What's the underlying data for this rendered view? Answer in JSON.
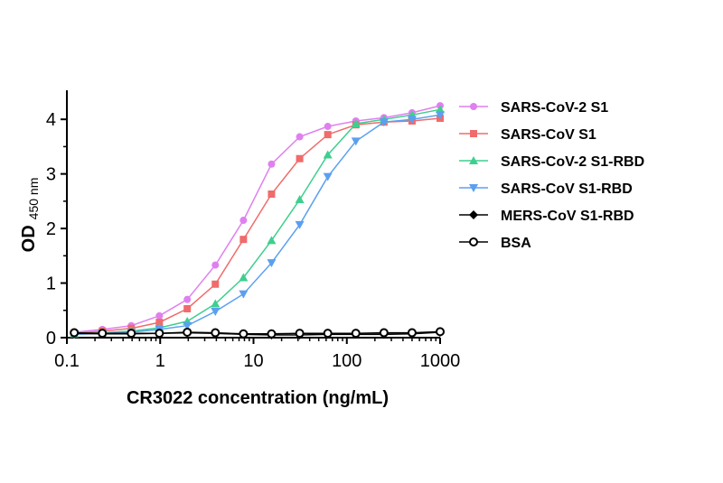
{
  "chart_data": {
    "type": "line",
    "title": "",
    "xlabel": "CR3022 concentration (ng/mL)",
    "ylabel_main": "OD",
    "ylabel_sub": "450 nm",
    "xscale": "log",
    "xlim": [
      0.1,
      1000
    ],
    "ylim": [
      0,
      4.4
    ],
    "xticks": [
      0.1,
      1,
      10,
      100,
      1000
    ],
    "xtick_labels": [
      "0.1",
      "1",
      "10",
      "100",
      "1000"
    ],
    "yticks": [
      0,
      1,
      2,
      3,
      4
    ],
    "ytick_labels": [
      "0",
      "1",
      "2",
      "3",
      "4"
    ],
    "grid": false,
    "legend_position": "right",
    "x": [
      0.12,
      0.24,
      0.49,
      0.98,
      1.95,
      3.9,
      7.8,
      15.6,
      31.25,
      62.5,
      125,
      250,
      500,
      1000
    ],
    "series": [
      {
        "name": "SARS-CoV-2 S1",
        "color": "#e07ff0",
        "marker": "circle",
        "values": [
          0.1,
          0.15,
          0.22,
          0.4,
          0.7,
          1.33,
          2.15,
          3.18,
          3.68,
          3.87,
          3.97,
          4.03,
          4.12,
          4.25
        ]
      },
      {
        "name": "SARS-CoV S1",
        "color": "#f06b6b",
        "marker": "square",
        "values": [
          0.08,
          0.12,
          0.17,
          0.28,
          0.53,
          0.98,
          1.8,
          2.63,
          3.28,
          3.72,
          3.9,
          3.95,
          3.97,
          4.02
        ]
      },
      {
        "name": "SARS-CoV-2 S1-RBD",
        "color": "#3ecf8e",
        "marker": "triangle-up",
        "values": [
          0.07,
          0.09,
          0.12,
          0.18,
          0.3,
          0.62,
          1.1,
          1.78,
          2.53,
          3.35,
          3.92,
          4.0,
          4.08,
          4.18
        ]
      },
      {
        "name": "SARS-CoV S1-RBD",
        "color": "#5aa0f0",
        "marker": "triangle-down",
        "values": [
          0.06,
          0.08,
          0.1,
          0.15,
          0.22,
          0.48,
          0.8,
          1.37,
          2.07,
          2.95,
          3.6,
          3.95,
          4.0,
          4.08
        ]
      },
      {
        "name": "MERS-CoV S1-RBD",
        "color": "#000000",
        "marker": "diamond",
        "values": [
          0.08,
          0.07,
          0.07,
          0.08,
          0.09,
          0.08,
          0.06,
          0.05,
          0.05,
          0.06,
          0.06,
          0.06,
          0.07,
          0.1
        ]
      },
      {
        "name": "BSA",
        "color": "#000000",
        "marker": "open-circle",
        "values": [
          0.09,
          0.08,
          0.08,
          0.08,
          0.1,
          0.09,
          0.07,
          0.07,
          0.08,
          0.08,
          0.08,
          0.09,
          0.09,
          0.11
        ]
      }
    ]
  }
}
